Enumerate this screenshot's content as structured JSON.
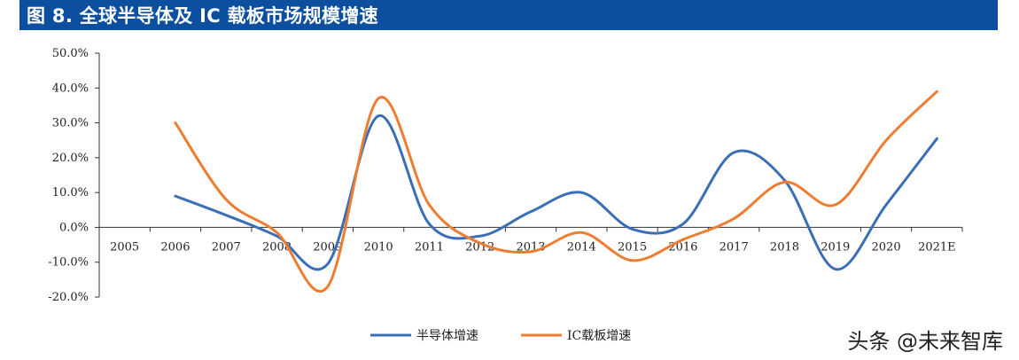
{
  "header": {
    "title": "图 8. 全球半导体及 IC 载板市场规模增速"
  },
  "colors": {
    "header_bg": "#0b4f9e",
    "series1": "#3a6fb7",
    "series2": "#ee7d31",
    "axis": "#333333"
  },
  "watermark": {
    "text": "头条 @未来智库"
  },
  "chart_data": {
    "type": "line",
    "title": "图 8. 全球半导体及 IC 载板市场规模增速",
    "xlabel": "",
    "ylabel": "",
    "categories": [
      "2005",
      "2006",
      "2007",
      "2008",
      "2009",
      "2010",
      "2011",
      "2012",
      "2013",
      "2014",
      "2015",
      "2016",
      "2017",
      "2018",
      "2019",
      "2020",
      "2021E"
    ],
    "ylim": [
      -20,
      50
    ],
    "yticks": [
      50,
      40,
      30,
      20,
      10,
      0,
      -10,
      -20
    ],
    "ytick_labels": [
      "50.0%",
      "40.0%",
      "30.0%",
      "20.0%",
      "10.0%",
      "0.0%",
      "-10.0%",
      "-20.0%"
    ],
    "grid": false,
    "legend_position": "bottom",
    "smooth": true,
    "series": [
      {
        "name": "半导体增速",
        "values": [
          null,
          9.0,
          3.5,
          -2.5,
          -10.5,
          32.0,
          1.0,
          -2.5,
          4.5,
          10.0,
          -0.5,
          1.0,
          21.5,
          13.5,
          -12.0,
          6.5,
          25.5
        ]
      },
      {
        "name": "IC载板增速",
        "values": [
          null,
          30.0,
          8.0,
          -1.5,
          -17.0,
          37.0,
          6.5,
          -4.5,
          -7.0,
          -1.5,
          -9.5,
          -3.5,
          2.5,
          13.0,
          6.5,
          25.0,
          39.0
        ]
      }
    ]
  }
}
